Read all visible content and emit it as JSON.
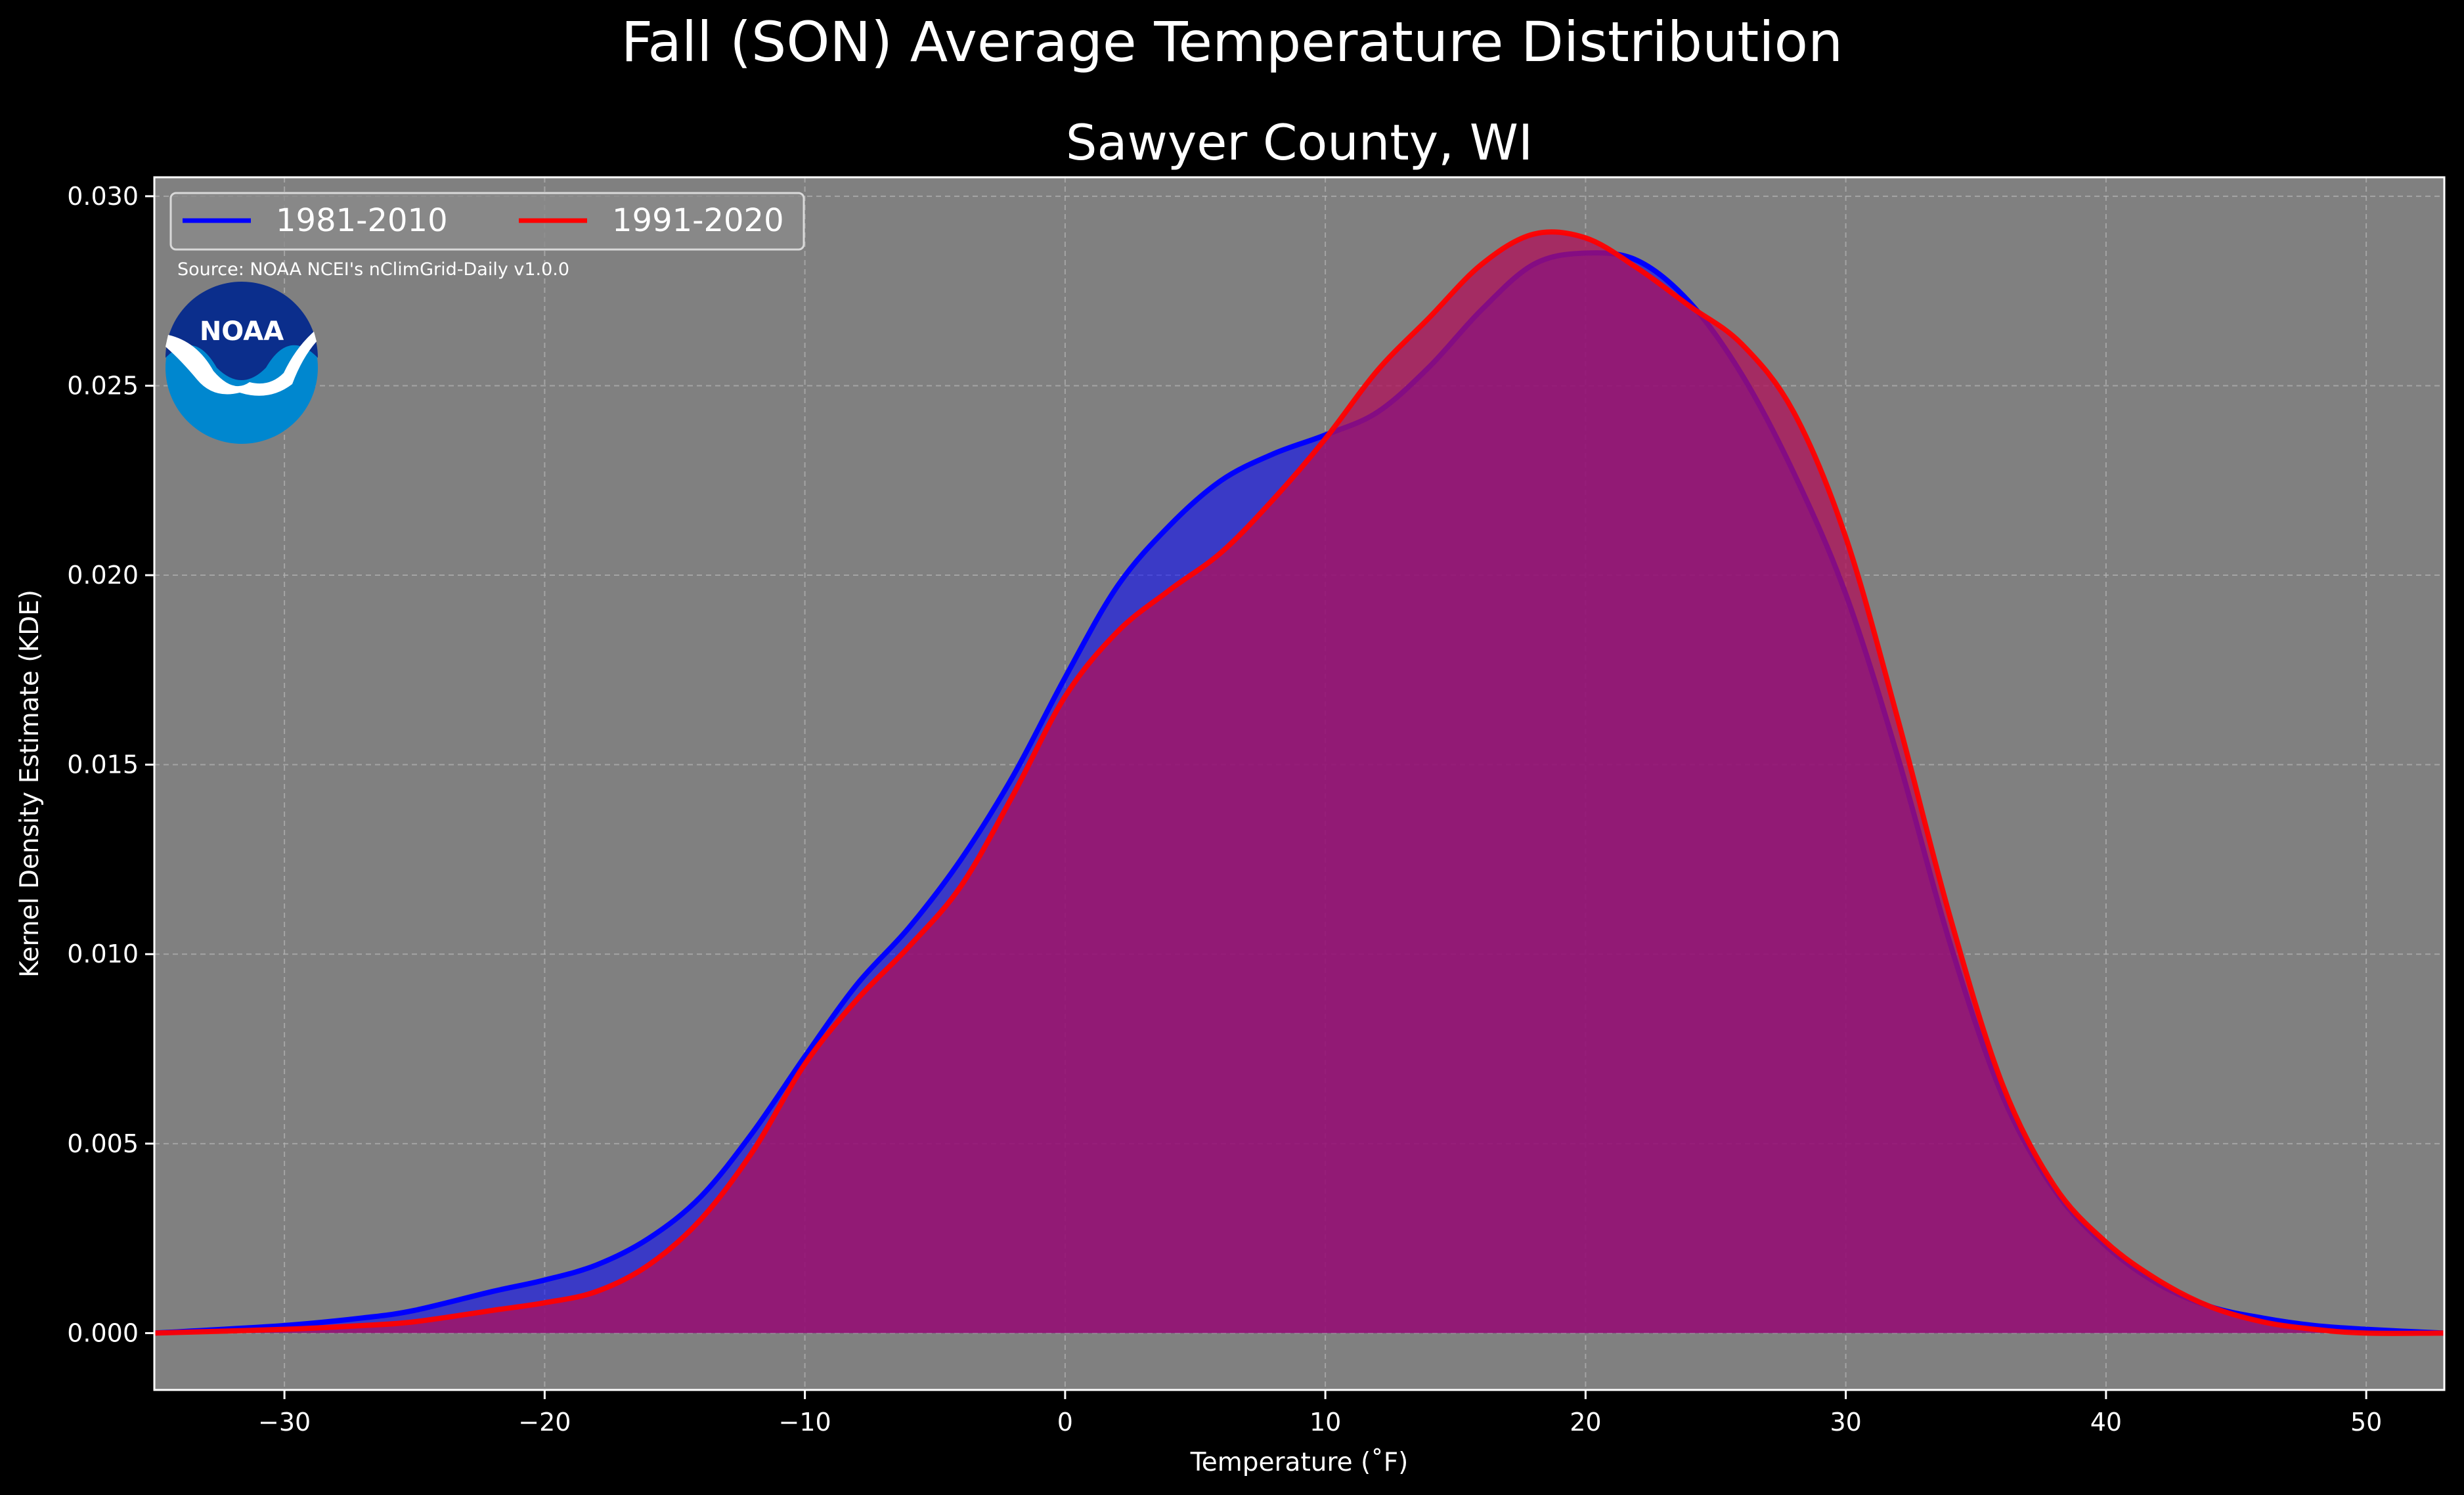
{
  "suptitle": "Fall (SON) Average Temperature Distribution",
  "chart_data": {
    "type": "area",
    "title": "Sawyer County, WI",
    "xlabel": "Temperature (˚F)",
    "ylabel": "Kernel Density Estimate (KDE)",
    "xlim": [
      -35,
      53
    ],
    "ylim": [
      -0.0015,
      0.0305
    ],
    "xticks": [
      -30,
      -20,
      -10,
      0,
      10,
      20,
      30,
      40,
      50
    ],
    "xtick_labels": [
      "−30",
      "−20",
      "−10",
      "0",
      "10",
      "20",
      "30",
      "40",
      "50"
    ],
    "yticks": [
      0.0,
      0.005,
      0.01,
      0.015,
      0.02,
      0.025,
      0.03
    ],
    "ytick_labels": [
      "0.000",
      "0.005",
      "0.010",
      "0.015",
      "0.020",
      "0.025",
      "0.030"
    ],
    "grid": true,
    "legend_position": "top-left",
    "annotation": "Source: NOAA NCEI's nClimGrid-Daily v1.0.0",
    "logo_text": "NOAA",
    "colors": {
      "figure_bg": "#000000",
      "axes_bg": "#808080",
      "grid": "#b3b3b3",
      "logo_dark": "#0b2e8c",
      "logo_light": "#0087cf"
    },
    "series": [
      {
        "name": "1981-2010",
        "color": "#0000ff",
        "fill": "#0000ff",
        "x": [
          -35,
          -30,
          -27,
          -25,
          -22,
          -20,
          -18,
          -16,
          -14,
          -12,
          -10,
          -8,
          -6,
          -4,
          -2,
          0,
          2,
          4,
          6,
          8,
          10,
          12,
          14,
          16,
          18,
          20,
          22,
          24,
          26,
          28,
          30,
          32,
          34,
          36,
          38,
          40,
          42,
          44,
          46,
          48,
          50,
          53
        ],
        "y": [
          0.0,
          0.0002,
          0.0004,
          0.0006,
          0.0011,
          0.0014,
          0.0018,
          0.0025,
          0.0036,
          0.0053,
          0.0073,
          0.0092,
          0.0107,
          0.0125,
          0.0147,
          0.0173,
          0.0197,
          0.0213,
          0.0225,
          0.0232,
          0.0237,
          0.0243,
          0.0255,
          0.027,
          0.0282,
          0.0285,
          0.0283,
          0.0272,
          0.0253,
          0.0227,
          0.0195,
          0.0152,
          0.0103,
          0.0063,
          0.0038,
          0.0023,
          0.0013,
          0.0007,
          0.0004,
          0.0002,
          0.0001,
          0.0
        ]
      },
      {
        "name": "1991-2020",
        "color": "#ff0000",
        "fill": "#b0105a",
        "x": [
          -35,
          -30,
          -27,
          -25,
          -22,
          -20,
          -18,
          -16,
          -14,
          -12,
          -10,
          -8,
          -6,
          -4,
          -2,
          0,
          2,
          4,
          6,
          8,
          10,
          12,
          14,
          16,
          18,
          20,
          22,
          24,
          26,
          28,
          30,
          32,
          34,
          36,
          38,
          40,
          42,
          44,
          46,
          48,
          50,
          53
        ],
        "y": [
          0.0,
          0.0001,
          0.0002,
          0.0003,
          0.0006,
          0.0008,
          0.0011,
          0.0018,
          0.003,
          0.0048,
          0.0071,
          0.0088,
          0.0102,
          0.0118,
          0.0142,
          0.0168,
          0.0185,
          0.0196,
          0.0206,
          0.022,
          0.0236,
          0.0254,
          0.0268,
          0.0282,
          0.029,
          0.0289,
          0.0281,
          0.0271,
          0.0261,
          0.0243,
          0.021,
          0.0162,
          0.011,
          0.0066,
          0.0039,
          0.0024,
          0.0014,
          0.0007,
          0.0003,
          0.0001,
          0.0,
          0.0
        ]
      }
    ]
  }
}
